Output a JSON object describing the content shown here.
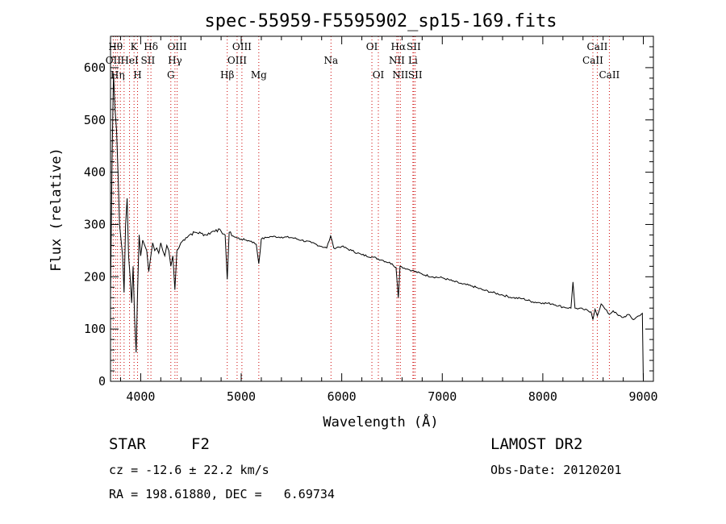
{
  "chart_data": {
    "type": "line",
    "title": "spec-55959-F5595902_sp15-169.fits",
    "xlabel": "Wavelength (Å)",
    "ylabel": "Flux (relative)",
    "xlim": [
      3700,
      9100
    ],
    "ylim": [
      0,
      660
    ],
    "x_ticks": [
      4000,
      5000,
      6000,
      7000,
      8000,
      9000
    ],
    "y_ticks": [
      0,
      100,
      200,
      300,
      400,
      500,
      600
    ],
    "grid": false,
    "line_color": "#000000",
    "marker_color": "#cc0000",
    "series": [
      {
        "x": [
          3700,
          3715,
          3730,
          3745,
          3760,
          3775,
          3790,
          3805,
          3820,
          3835,
          3850,
          3865,
          3880,
          3895,
          3910,
          3925,
          3940,
          3955,
          3970,
          3985,
          4000,
          4020,
          4040,
          4060,
          4080,
          4101,
          4120,
          4140,
          4160,
          4180,
          4200,
          4220,
          4240,
          4260,
          4280,
          4300,
          4320,
          4340,
          4360,
          4380,
          4400,
          4450,
          4500,
          4550,
          4600,
          4650,
          4700,
          4750,
          4800,
          4840,
          4861,
          4880,
          4920,
          4960,
          5000,
          5050,
          5100,
          5150,
          5175,
          5200,
          5250,
          5300,
          5400,
          5500,
          5600,
          5700,
          5800,
          5850,
          5890,
          5920,
          6000,
          6100,
          6200,
          6300,
          6400,
          6500,
          6540,
          6563,
          6580,
          6650,
          6700,
          6800,
          6900,
          7000,
          7100,
          7200,
          7300,
          7400,
          7500,
          7600,
          7700,
          7800,
          7900,
          8000,
          8100,
          8200,
          8280,
          8300,
          8320,
          8400,
          8480,
          8498,
          8520,
          8542,
          8580,
          8620,
          8662,
          8700,
          8750,
          8800,
          8850,
          8900,
          8950,
          8990,
          9000
        ],
        "y": [
          160,
          420,
          590,
          520,
          480,
          400,
          300,
          270,
          240,
          170,
          300,
          350,
          240,
          200,
          150,
          220,
          120,
          55,
          180,
          280,
          240,
          270,
          260,
          250,
          210,
          240,
          265,
          250,
          255,
          245,
          265,
          250,
          240,
          260,
          250,
          220,
          240,
          175,
          250,
          255,
          265,
          275,
          282,
          285,
          283,
          280,
          285,
          290,
          287,
          280,
          195,
          285,
          278,
          274,
          272,
          270,
          268,
          262,
          225,
          272,
          275,
          277,
          276,
          275,
          270,
          265,
          258,
          255,
          278,
          255,
          258,
          250,
          242,
          238,
          232,
          225,
          218,
          160,
          220,
          215,
          212,
          205,
          200,
          198,
          192,
          186,
          182,
          175,
          170,
          165,
          160,
          158,
          152,
          150,
          148,
          142,
          140,
          190,
          140,
          138,
          133,
          118,
          138,
          125,
          148,
          138,
          128,
          135,
          126,
          122,
          128,
          118,
          125,
          130,
          0
        ]
      }
    ],
    "line_markers": [
      {
        "x": 3727,
        "label": "OII",
        "row": 2
      },
      {
        "x": 3750,
        "label": "Hθ",
        "row": 1
      },
      {
        "x": 3770,
        "label": "Hη",
        "row": 3
      },
      {
        "x": 3798,
        "label": "",
        "row": 0
      },
      {
        "x": 3835,
        "label": "",
        "row": 0
      },
      {
        "x": 3889,
        "label": "HeI",
        "row": 2
      },
      {
        "x": 3934,
        "label": "K",
        "row": 1
      },
      {
        "x": 3969,
        "label": "H",
        "row": 3
      },
      {
        "x": 4072,
        "label": "SII",
        "row": 2
      },
      {
        "x": 4102,
        "label": "Hδ",
        "row": 1
      },
      {
        "x": 4300,
        "label": "G",
        "row": 3
      },
      {
        "x": 4341,
        "label": "Hγ",
        "row": 2
      },
      {
        "x": 4363,
        "label": "OIII",
        "row": 1
      },
      {
        "x": 4861,
        "label": "Hβ",
        "row": 3
      },
      {
        "x": 4959,
        "label": "OIII",
        "row": 2
      },
      {
        "x": 5007,
        "label": "OIII",
        "row": 1
      },
      {
        "x": 5175,
        "label": "Mg",
        "row": 3
      },
      {
        "x": 5893,
        "label": "Na",
        "row": 2
      },
      {
        "x": 6300,
        "label": "OI",
        "row": 1
      },
      {
        "x": 6364,
        "label": "OI",
        "row": 3
      },
      {
        "x": 6548,
        "label": "NII",
        "row": 2
      },
      {
        "x": 6563,
        "label": "Hα",
        "row": 1
      },
      {
        "x": 6583,
        "label": "NII",
        "row": 3
      },
      {
        "x": 6708,
        "label": "Li",
        "row": 2
      },
      {
        "x": 6716,
        "label": "SII",
        "row": 1
      },
      {
        "x": 6731,
        "label": "SII",
        "row": 3
      },
      {
        "x": 8498,
        "label": "CaII",
        "row": 2
      },
      {
        "x": 8542,
        "label": "CaII",
        "row": 1
      },
      {
        "x": 8662,
        "label": "CaII",
        "row": 3
      }
    ]
  },
  "info": {
    "object_class": "STAR",
    "subclass": "F2",
    "survey": "LAMOST DR2",
    "velocity": "cz = -12.6 ± 22.2 km/s",
    "obs_date": "Obs-Date: 20120201",
    "coords": "RA = 198.61880, DEC =   6.69734"
  }
}
